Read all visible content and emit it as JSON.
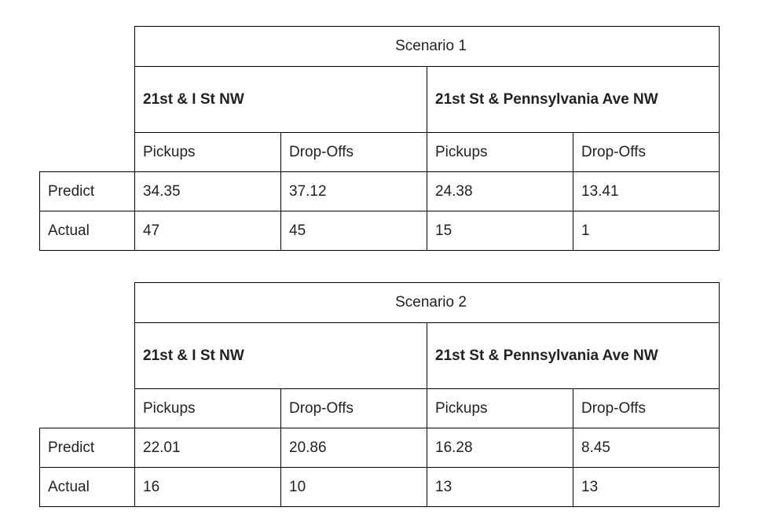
{
  "tables": [
    {
      "title": "Scenario 1",
      "locations": [
        "21st & I St NW",
        "21st St & Pennsylvania Ave NW"
      ],
      "subheaders": [
        "Pickups",
        "Drop-Offs",
        "Pickups",
        "Drop-Offs"
      ],
      "rows": [
        {
          "label": "Predict",
          "values": [
            "34.35",
            "37.12",
            "24.38",
            "13.41"
          ]
        },
        {
          "label": "Actual",
          "values": [
            "47",
            "45",
            "15",
            "1"
          ]
        }
      ]
    },
    {
      "title": "Scenario 2",
      "locations": [
        "21st & I St NW",
        "21st St & Pennsylvania Ave NW"
      ],
      "subheaders": [
        "Pickups",
        "Drop-Offs",
        "Pickups",
        "Drop-Offs"
      ],
      "rows": [
        {
          "label": "Predict",
          "values": [
            "22.01",
            "20.86",
            "16.28",
            "8.45"
          ]
        },
        {
          "label": "Actual",
          "values": [
            "16",
            "10",
            "13",
            "13"
          ]
        }
      ]
    }
  ]
}
